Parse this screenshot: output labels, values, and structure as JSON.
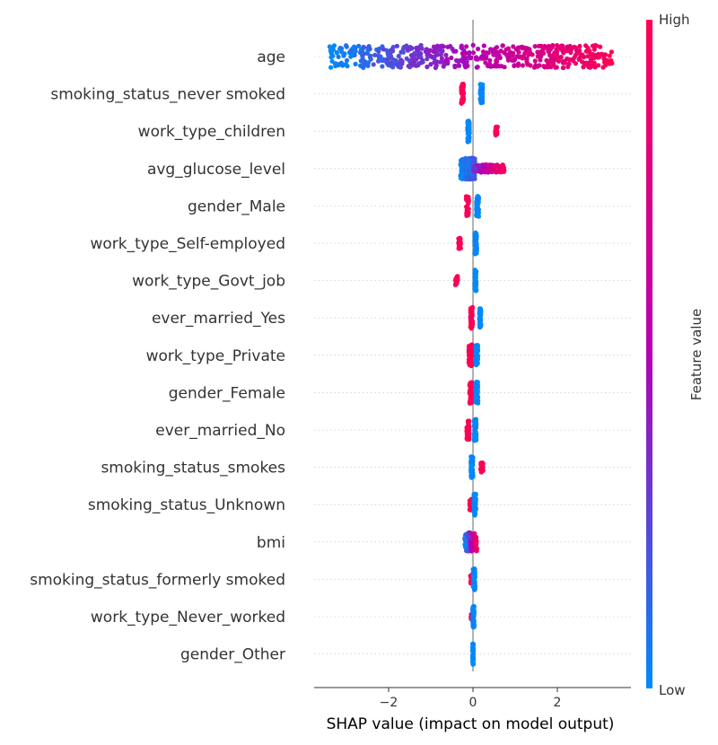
{
  "chart_data": {
    "type": "scatter",
    "subtype": "shap-beeswarm",
    "title": "",
    "xlabel": "SHAP value (impact on model output)",
    "ylabel": "",
    "xlim": [
      -3.7,
      3.7
    ],
    "xticks": [
      -2,
      0,
      2
    ],
    "xtick_labels": [
      "−2",
      "0",
      "2"
    ],
    "grid": "horizontal dotted row guides",
    "colorbar": {
      "label": "Feature value",
      "high_label": "High",
      "low_label": "Low",
      "low_color": "#008bfb",
      "mid_color": "#b400b4",
      "high_color": "#ff0052"
    },
    "features": [
      {
        "name": "age",
        "clusters": [
          {
            "from": -3.4,
            "to": 3.3,
            "value_from": 0.0,
            "value_to": 1.0,
            "spread": 0.9,
            "count": 520
          }
        ]
      },
      {
        "name": "smoking_status_never smoked",
        "clusters": [
          {
            "from": -0.28,
            "to": -0.22,
            "value_from": 1.0,
            "value_to": 1.0,
            "spread": 0.8,
            "count": 40
          },
          {
            "from": 0.17,
            "to": 0.23,
            "value_from": 0.0,
            "value_to": 0.0,
            "spread": 0.8,
            "count": 60
          }
        ]
      },
      {
        "name": "work_type_children",
        "clusters": [
          {
            "from": -0.13,
            "to": -0.08,
            "value_from": 0.0,
            "value_to": 0.0,
            "spread": 0.85,
            "count": 60
          },
          {
            "from": 0.53,
            "to": 0.58,
            "value_from": 1.0,
            "value_to": 1.0,
            "spread": 0.35,
            "count": 18
          }
        ]
      },
      {
        "name": "avg_glucose_level",
        "clusters": [
          {
            "from": -0.3,
            "to": 0.05,
            "value_from": 0.0,
            "value_to": 0.2,
            "spread": 0.85,
            "count": 200
          },
          {
            "from": 0.0,
            "to": 0.75,
            "value_from": 0.3,
            "value_to": 1.0,
            "spread": 0.3,
            "count": 110
          }
        ]
      },
      {
        "name": "gender_Male",
        "clusters": [
          {
            "from": -0.16,
            "to": -0.1,
            "value_from": 1.0,
            "value_to": 1.0,
            "spread": 0.8,
            "count": 40
          },
          {
            "from": 0.08,
            "to": 0.14,
            "value_from": 0.0,
            "value_to": 0.0,
            "spread": 0.85,
            "count": 60
          }
        ]
      },
      {
        "name": "work_type_Self-employed",
        "clusters": [
          {
            "from": -0.35,
            "to": -0.29,
            "value_from": 1.0,
            "value_to": 1.0,
            "spread": 0.45,
            "count": 22
          },
          {
            "from": 0.04,
            "to": 0.09,
            "value_from": 0.0,
            "value_to": 0.0,
            "spread": 0.85,
            "count": 60
          }
        ]
      },
      {
        "name": "work_type_Govt_job",
        "clusters": [
          {
            "from": -0.42,
            "to": -0.36,
            "value_from": 1.0,
            "value_to": 1.0,
            "spread": 0.4,
            "count": 20
          },
          {
            "from": 0.04,
            "to": 0.08,
            "value_from": 0.0,
            "value_to": 0.0,
            "spread": 0.85,
            "count": 60
          }
        ]
      },
      {
        "name": "ever_married_Yes",
        "clusters": [
          {
            "from": -0.06,
            "to": -0.01,
            "value_from": 1.0,
            "value_to": 1.0,
            "spread": 0.85,
            "count": 60
          },
          {
            "from": 0.15,
            "to": 0.19,
            "value_from": 0.0,
            "value_to": 0.0,
            "spread": 0.75,
            "count": 40
          }
        ]
      },
      {
        "name": "work_type_Private",
        "clusters": [
          {
            "from": -0.1,
            "to": -0.02,
            "value_from": 1.0,
            "value_to": 1.0,
            "spread": 0.85,
            "count": 70
          },
          {
            "from": 0.06,
            "to": 0.12,
            "value_from": 0.0,
            "value_to": 0.0,
            "spread": 0.85,
            "count": 60
          }
        ]
      },
      {
        "name": "gender_Female",
        "clusters": [
          {
            "from": -0.08,
            "to": -0.02,
            "value_from": 1.0,
            "value_to": 1.0,
            "spread": 0.85,
            "count": 60
          },
          {
            "from": 0.06,
            "to": 0.12,
            "value_from": 0.0,
            "value_to": 0.0,
            "spread": 0.85,
            "count": 60
          }
        ]
      },
      {
        "name": "ever_married_No",
        "clusters": [
          {
            "from": -0.15,
            "to": -0.08,
            "value_from": 1.0,
            "value_to": 1.0,
            "spread": 0.75,
            "count": 45
          },
          {
            "from": 0.03,
            "to": 0.08,
            "value_from": 0.0,
            "value_to": 0.0,
            "spread": 0.85,
            "count": 60
          }
        ]
      },
      {
        "name": "smoking_status_smokes",
        "clusters": [
          {
            "from": -0.05,
            "to": 0.0,
            "value_from": 0.0,
            "value_to": 0.0,
            "spread": 0.85,
            "count": 60
          },
          {
            "from": 0.18,
            "to": 0.24,
            "value_from": 1.0,
            "value_to": 1.0,
            "spread": 0.4,
            "count": 20
          }
        ]
      },
      {
        "name": "smoking_status_Unknown",
        "clusters": [
          {
            "from": -0.08,
            "to": -0.03,
            "value_from": 1.0,
            "value_to": 1.0,
            "spread": 0.45,
            "count": 25
          },
          {
            "from": 0.02,
            "to": 0.07,
            "value_from": 0.0,
            "value_to": 0.0,
            "spread": 0.85,
            "count": 60
          }
        ]
      },
      {
        "name": "bmi",
        "clusters": [
          {
            "from": -0.2,
            "to": 0.1,
            "value_from": 0.0,
            "value_to": 1.0,
            "spread": 0.75,
            "count": 90
          }
        ]
      },
      {
        "name": "smoking_status_formerly smoked",
        "clusters": [
          {
            "from": -0.06,
            "to": -0.02,
            "value_from": 1.0,
            "value_to": 1.0,
            "spread": 0.35,
            "count": 16
          },
          {
            "from": 0.0,
            "to": 0.05,
            "value_from": 0.0,
            "value_to": 0.0,
            "spread": 0.85,
            "count": 60
          }
        ]
      },
      {
        "name": "work_type_Never_worked",
        "clusters": [
          {
            "from": -0.05,
            "to": -0.02,
            "value_from": 1.0,
            "value_to": 1.0,
            "spread": 0.2,
            "count": 8
          },
          {
            "from": -0.01,
            "to": 0.03,
            "value_from": 0.0,
            "value_to": 0.0,
            "spread": 0.85,
            "count": 60
          }
        ]
      },
      {
        "name": "gender_Other",
        "clusters": [
          {
            "from": -0.01,
            "to": 0.01,
            "value_from": 0.0,
            "value_to": 0.0,
            "spread": 0.85,
            "count": 60
          }
        ]
      }
    ]
  }
}
